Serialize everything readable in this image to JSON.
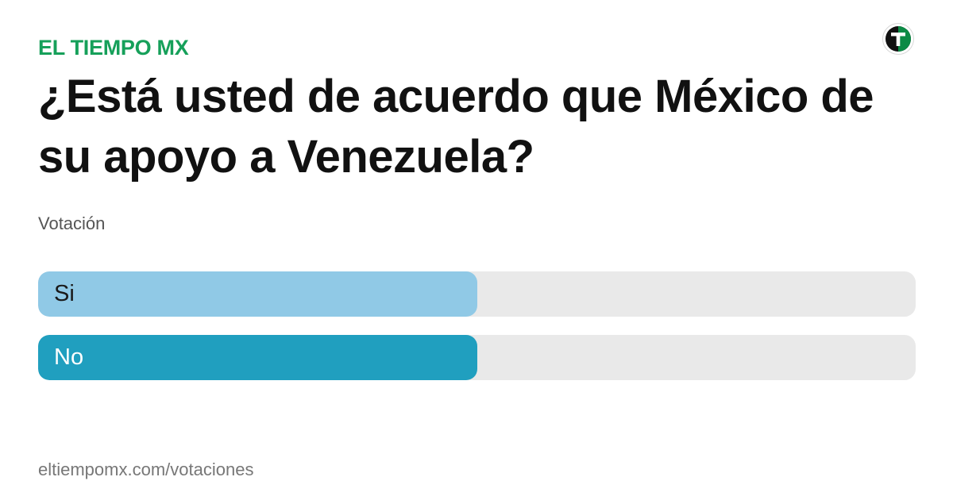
{
  "brand": {
    "name": "EL TIEMPO MX",
    "color": "#16a05a",
    "logo_icon": "t-circle-logo-icon"
  },
  "poll": {
    "question": "¿Está usted de acuerdo que México de su apoyo a Venezuela?",
    "subtitle": "Votación",
    "options": [
      {
        "label": "Si",
        "share": 0.5,
        "fill_color": "#90c9e6",
        "text_color": "#1a1a1a"
      },
      {
        "label": "No",
        "share": 0.5,
        "fill_color": "#209fbf",
        "text_color": "#ffffff"
      }
    ],
    "track_color": "#e9e9e9"
  },
  "footer": {
    "url": "eltiempomx.com/votaciones"
  }
}
